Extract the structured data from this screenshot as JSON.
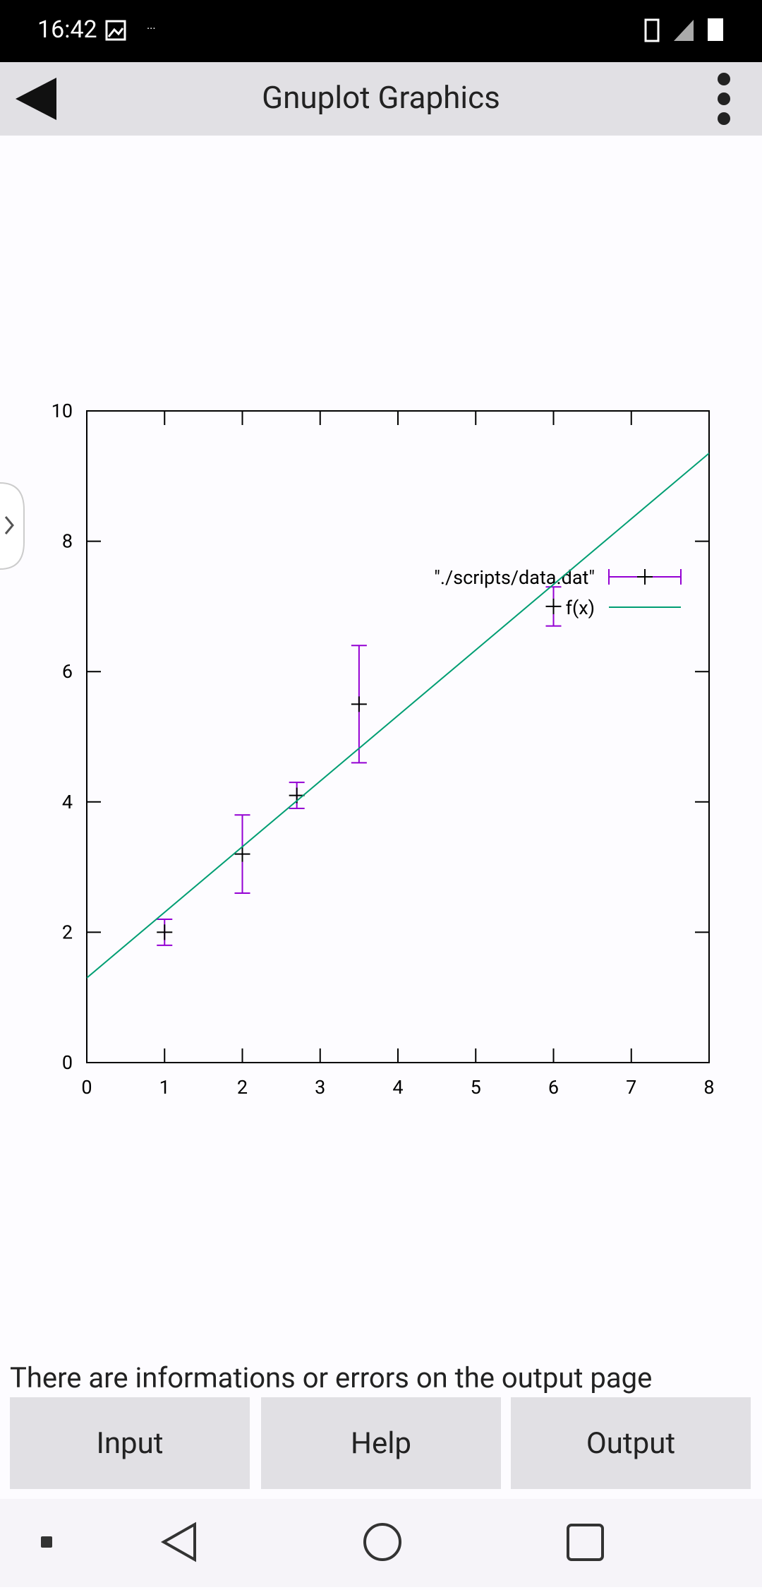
{
  "status": {
    "time": "16:42"
  },
  "header": {
    "title": "Gnuplot Graphics"
  },
  "chart_data": {
    "type": "scatter",
    "xlim": [
      0,
      8
    ],
    "xticks": [
      0,
      1,
      2,
      3,
      4,
      5,
      6,
      7,
      8
    ],
    "ylim": [
      0,
      10
    ],
    "yticks": [
      0,
      2,
      4,
      6,
      8,
      10
    ],
    "grid": false,
    "legend": "top-right",
    "series": [
      {
        "name": "\"./scripts/data.dat\"",
        "type": "errorbar",
        "color": "#9400d3",
        "x": [
          1,
          2,
          2.7,
          3.5,
          6
        ],
        "values": [
          2,
          3.2,
          4.1,
          5.5,
          7
        ],
        "errors": [
          0.2,
          0.6,
          0.2,
          0.9,
          0.3
        ]
      },
      {
        "name": "f(x)",
        "type": "line",
        "color": "#009e73",
        "x": [
          0,
          8
        ],
        "values": [
          1.3,
          9.35
        ]
      }
    ]
  },
  "info_text": "There are informations or errors on the output page",
  "buttons": [
    "Input",
    "Help",
    "Output"
  ]
}
